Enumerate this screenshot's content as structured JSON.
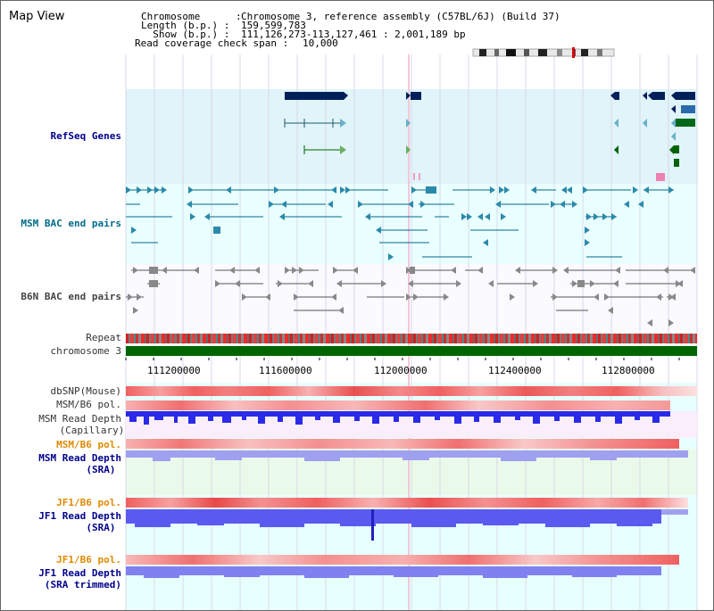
{
  "title": "Map View",
  "info": {
    "chromosome_key": "Chromosome      :",
    "chromosome_val": "Chromosome 3, reference assembly (C57BL/6J) (Build 37)",
    "length_key": "Length (b.p.) :",
    "length_val": "159,599,783",
    "show_key": "  Show (b.p.) :",
    "show_val": "111,126,273-113,127,461 : 2,001,189 bp",
    "coverage_key": "Read coverage check span :",
    "coverage_val": "10,000"
  },
  "tracks": {
    "refseq": "RefSeq Genes",
    "msm_bac": "MSM BAC end pairs",
    "b6n_bac": "B6N BAC end pairs",
    "repeat": "Repeat",
    "chromosome": "chromosome 3",
    "dbsnp": "dbSNP(Mouse)",
    "msm_b6_pol_1": "MSM/B6 pol.",
    "msm_depth_cap_1": "MSM Read Depth",
    "msm_depth_cap_2": "(Capillary)",
    "msm_b6_pol_2": "MSM/B6 pol.",
    "msm_depth_sra_1": "MSM Read Depth",
    "msm_depth_sra_2": "(SRA)",
    "jf1_b6_pol_1": "JF1/B6 pol.",
    "jf1_depth_sra_1": "JF1 Read Depth",
    "jf1_depth_sra_2": "(SRA)",
    "jf1_b6_pol_2": "JF1/B6 pol.",
    "jf1_depth_trim_1": "JF1 Read Depth",
    "jf1_depth_trim_2": "(SRA trimmed)"
  },
  "axis": {
    "ticks": [
      "111200000",
      "111600000",
      "112000000",
      "112400000",
      "112800000"
    ]
  },
  "colors": {
    "refseq_bg": "#e0f4fa",
    "bac_bg": "#eaffff",
    "dark_blue": "#00205b",
    "teal": "#006a8a",
    "green": "#006400"
  }
}
